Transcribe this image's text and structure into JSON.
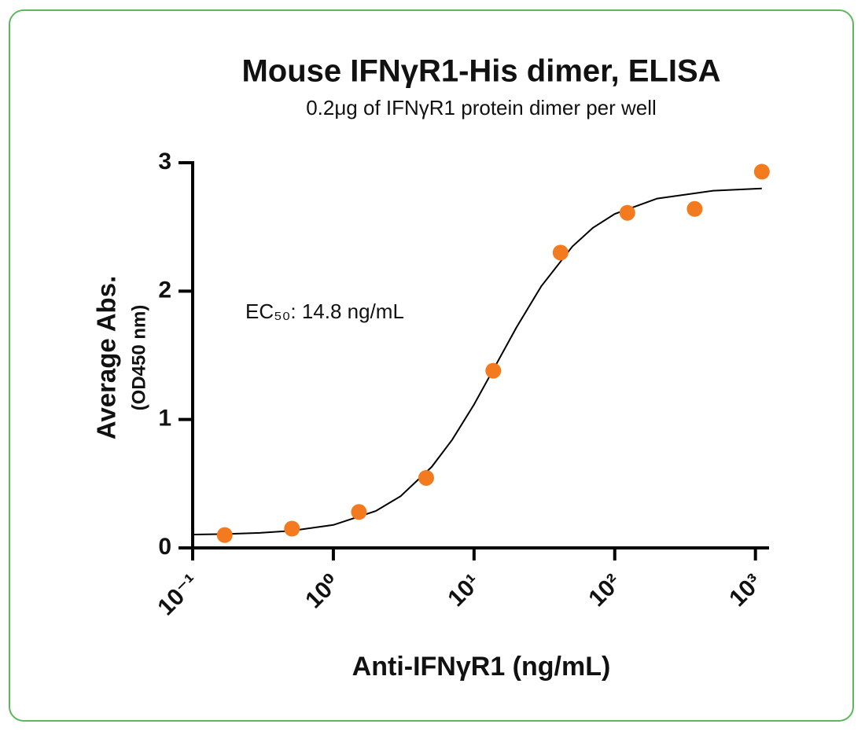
{
  "chart_data": {
    "type": "scatter",
    "title": "Mouse IFNγR1-His dimer, ELISA",
    "subtitle": "0.2μg of IFNγR1 protein dimer per well",
    "annotation": "EC₅₀: 14.8 ng/mL",
    "xlabel": "Anti-IFNγR1 (ng/mL)",
    "ylabel": "Average Abs.",
    "ylabel2": "(OD450 nm)",
    "xscale": "log",
    "xlim": [
      0.1,
      1250
    ],
    "xticks": [
      {
        "value": 0.1,
        "label": "10⁻¹"
      },
      {
        "value": 1,
        "label": "10⁰"
      },
      {
        "value": 10,
        "label": "10¹"
      },
      {
        "value": 100,
        "label": "10²"
      },
      {
        "value": 1000,
        "label": "10³"
      }
    ],
    "ylim": [
      0,
      3
    ],
    "yticks": [
      0,
      1,
      2,
      3
    ],
    "series": [
      {
        "color": "#f47a20",
        "x": [
          0.169,
          0.508,
          1.52,
          4.57,
          13.7,
          41.2,
          123,
          370,
          1111
        ],
        "values": [
          0.1,
          0.15,
          0.28,
          0.545,
          1.38,
          2.3,
          2.61,
          2.64,
          2.93
        ]
      }
    ],
    "curve": {
      "color": "#000000",
      "x": [
        0.1,
        0.17,
        0.3,
        0.5,
        1,
        2,
        3,
        5,
        7,
        10,
        14.8,
        20,
        30,
        50,
        70,
        100,
        200,
        500,
        1110
      ],
      "values": [
        0.104,
        0.108,
        0.117,
        0.133,
        0.179,
        0.287,
        0.402,
        0.631,
        0.843,
        1.117,
        1.455,
        1.717,
        2.037,
        2.348,
        2.493,
        2.601,
        2.721,
        2.782,
        2.8
      ]
    }
  }
}
